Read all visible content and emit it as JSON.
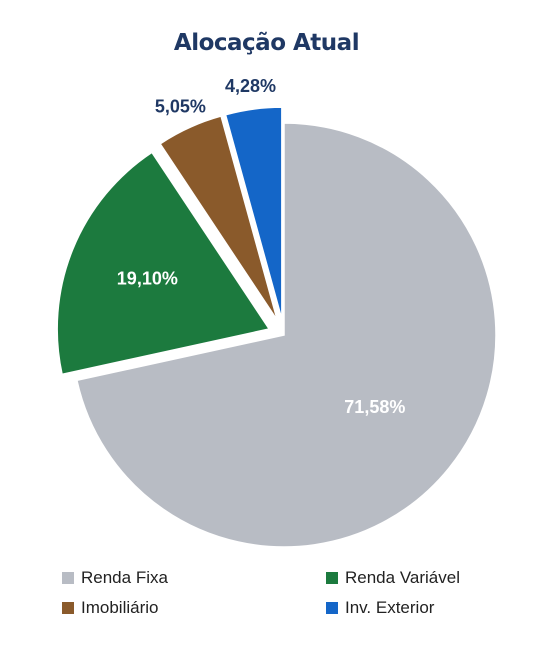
{
  "chart_data": {
    "type": "pie",
    "title": "Alocação Atual",
    "slices": [
      {
        "name": "Renda Fixa",
        "value": 71.58,
        "label": "71,58%",
        "color": "#b8bcc4",
        "label_color": "#ffffff",
        "exploded": false
      },
      {
        "name": "Renda Variável",
        "value": 19.1,
        "label": "19,10%",
        "color": "#1c7a3e",
        "label_color": "#ffffff",
        "exploded": true
      },
      {
        "name": "Imobiliário",
        "value": 5.05,
        "label": "5,05%",
        "color": "#8a5a2b",
        "label_color": "#1f3864",
        "exploded": true
      },
      {
        "name": "Inv. Exterior",
        "value": 4.28,
        "label": "4,28%",
        "color": "#1466c8",
        "label_color": "#1f3864",
        "exploded": true
      }
    ],
    "legend": [
      "Renda Fixa",
      "Renda Variável",
      "Imobiliário",
      "Inv. Exterior"
    ],
    "legend_position": "bottom"
  }
}
